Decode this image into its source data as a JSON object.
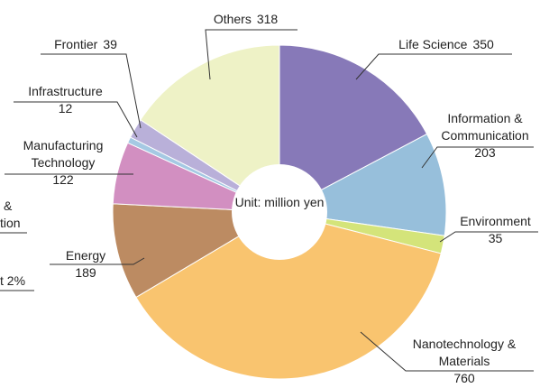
{
  "chart_data": {
    "type": "pie",
    "donut": true,
    "center_label": "Unit: million yen",
    "categories": [
      "Life Science",
      "Information & Communication",
      "Environment",
      "Nanotechnology & Materials",
      "Energy",
      "Manufacturing Technology",
      "Infrastructure",
      "Frontier",
      "Others"
    ],
    "values": [
      350,
      203,
      35,
      760,
      189,
      122,
      12,
      39,
      318
    ],
    "colors": [
      "#8779b8",
      "#97bfdb",
      "#d4e47a",
      "#f9c46f",
      "#bc8b62",
      "#d28fc1",
      "#a5c9e3",
      "#b9b0d9",
      "#eef2c6"
    ],
    "annotations": [
      "&",
      "tion",
      "t 2%"
    ]
  }
}
